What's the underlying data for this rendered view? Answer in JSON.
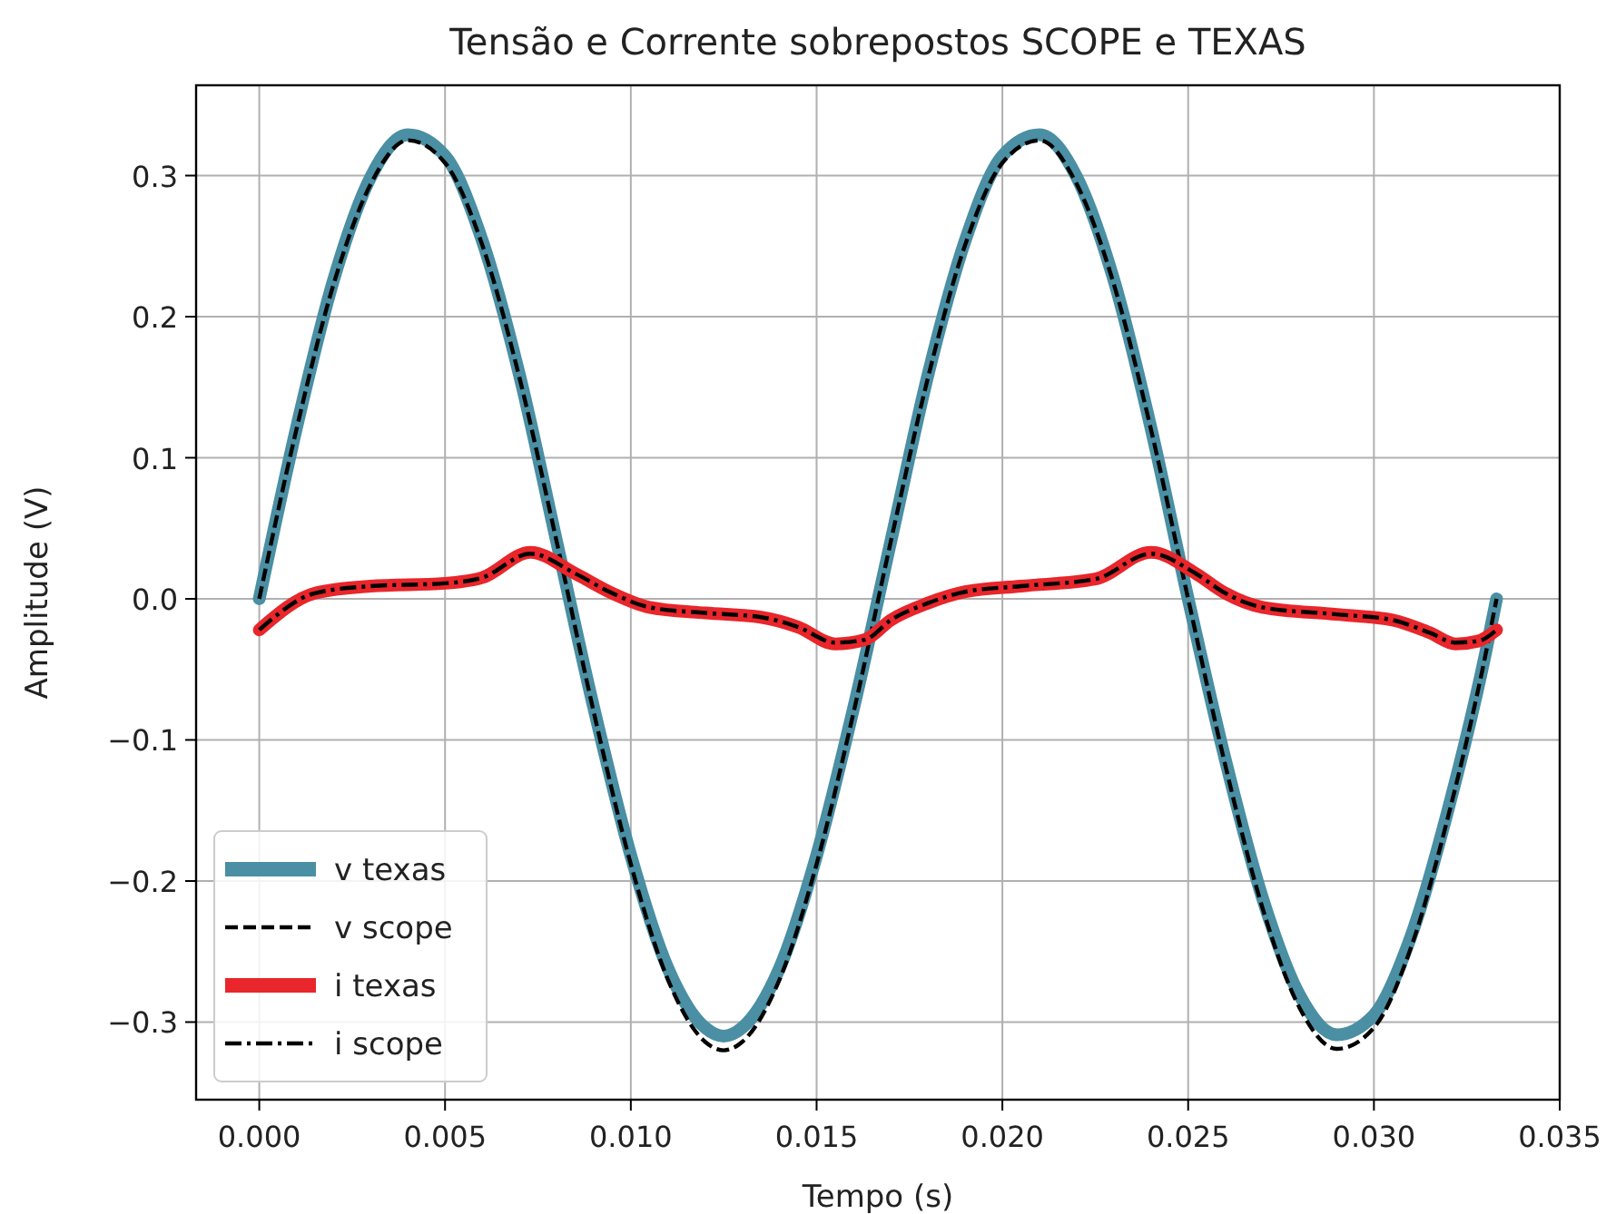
{
  "chart_data": {
    "type": "line",
    "title": "Tensão e Corrente sobrepostos SCOPE e TEXAS",
    "xlabel": "Tempo (s)",
    "ylabel": "Amplitude (V)",
    "xlim": [
      -0.0017,
      0.035
    ],
    "ylim": [
      -0.355,
      0.364
    ],
    "xticks": [
      {
        "value": 0,
        "label": "0.000"
      },
      {
        "value": 0.005,
        "label": "0.005"
      },
      {
        "value": 0.01,
        "label": "0.010"
      },
      {
        "value": 0.015,
        "label": "0.015"
      },
      {
        "value": 0.02,
        "label": "0.020"
      },
      {
        "value": 0.025,
        "label": "0.025"
      },
      {
        "value": 0.03,
        "label": "0.030"
      },
      {
        "value": 0.035,
        "label": "0.035"
      }
    ],
    "yticks": [
      {
        "value": -0.3,
        "label": "−0.3"
      },
      {
        "value": -0.2,
        "label": "−0.2"
      },
      {
        "value": -0.1,
        "label": "−0.1"
      },
      {
        "value": 0,
        "label": "0.0"
      },
      {
        "value": 0.1,
        "label": "0.1"
      },
      {
        "value": 0.2,
        "label": "0.2"
      },
      {
        "value": 0.3,
        "label": "0.3"
      }
    ],
    "grid": true,
    "legend": "bottom left",
    "series": [
      {
        "name": "v texas",
        "color": "#4a8fa3",
        "line_style": "solid",
        "x": [
          0,
          0.001,
          0.002,
          0.003,
          0.004,
          0.005,
          0.006,
          0.007,
          0.008,
          0.009,
          0.01,
          0.011,
          0.012,
          0.0125,
          0.013,
          0.014,
          0.015,
          0.016,
          0.017,
          0.018,
          0.019,
          0.02,
          0.021,
          0.022,
          0.023,
          0.024,
          0.025,
          0.026,
          0.027,
          0.028,
          0.029,
          0.03,
          0.031,
          0.032,
          0.033,
          0.0333
        ],
        "values": [
          0,
          0.121,
          0.226,
          0.299,
          0.329,
          0.314,
          0.254,
          0.159,
          0.041,
          -0.077,
          -0.182,
          -0.262,
          -0.304,
          -0.31,
          -0.304,
          -0.262,
          -0.182,
          -0.077,
          0.041,
          0.159,
          0.254,
          0.314,
          0.329,
          0.299,
          0.226,
          0.121,
          0,
          -0.114,
          -0.212,
          -0.281,
          -0.309,
          -0.295,
          -0.239,
          -0.149,
          -0.039,
          0
        ]
      },
      {
        "name": "v scope",
        "color": "#000000",
        "line_style": "dashed",
        "x": [
          0,
          0.001,
          0.002,
          0.003,
          0.004,
          0.005,
          0.006,
          0.007,
          0.008,
          0.009,
          0.01,
          0.011,
          0.012,
          0.0125,
          0.013,
          0.014,
          0.015,
          0.016,
          0.017,
          0.018,
          0.019,
          0.02,
          0.021,
          0.022,
          0.023,
          0.024,
          0.025,
          0.026,
          0.027,
          0.028,
          0.029,
          0.03,
          0.031,
          0.032,
          0.033,
          0.0333
        ],
        "values": [
          0,
          0.12,
          0.223,
          0.294,
          0.325,
          0.309,
          0.251,
          0.157,
          0.041,
          -0.08,
          -0.188,
          -0.27,
          -0.314,
          -0.32,
          -0.314,
          -0.27,
          -0.188,
          -0.08,
          0.041,
          0.157,
          0.251,
          0.309,
          0.325,
          0.294,
          0.223,
          0.12,
          0,
          -0.118,
          -0.219,
          -0.29,
          -0.319,
          -0.304,
          -0.247,
          -0.154,
          -0.04,
          0
        ]
      },
      {
        "name": "i texas",
        "color": "#e8262b",
        "line_style": "solid",
        "x": [
          0,
          0.0015,
          0.003,
          0.005,
          0.006,
          0.0073,
          0.0085,
          0.0095,
          0.0105,
          0.012,
          0.0135,
          0.0145,
          0.0155,
          0.0163,
          0.017,
          0.018,
          0.019,
          0.0205,
          0.0225,
          0.024,
          0.0252,
          0.026,
          0.027,
          0.029,
          0.0305,
          0.0315,
          0.0322,
          0.0328,
          0.0333
        ],
        "values": [
          -0.022,
          0.004,
          0.009,
          0.011,
          0.015,
          0.033,
          0.018,
          0.004,
          -0.006,
          -0.01,
          -0.013,
          -0.02,
          -0.032,
          -0.029,
          -0.015,
          -0.003,
          0.005,
          0.009,
          0.014,
          0.033,
          0.018,
          0.004,
          -0.006,
          -0.011,
          -0.015,
          -0.024,
          -0.032,
          -0.03,
          -0.022
        ]
      },
      {
        "name": "i scope",
        "color": "#000000",
        "line_style": "dashdot",
        "x": [
          0,
          0.0015,
          0.003,
          0.005,
          0.006,
          0.0073,
          0.0085,
          0.0095,
          0.0105,
          0.012,
          0.0135,
          0.0145,
          0.0155,
          0.0163,
          0.017,
          0.018,
          0.019,
          0.0205,
          0.0225,
          0.024,
          0.0252,
          0.026,
          0.027,
          0.029,
          0.0305,
          0.0315,
          0.0322,
          0.0328,
          0.0333
        ],
        "values": [
          -0.022,
          0.004,
          0.009,
          0.011,
          0.015,
          0.032,
          0.018,
          0.004,
          -0.006,
          -0.01,
          -0.013,
          -0.02,
          -0.031,
          -0.029,
          -0.015,
          -0.003,
          0.005,
          0.009,
          0.014,
          0.032,
          0.018,
          0.004,
          -0.006,
          -0.011,
          -0.015,
          -0.024,
          -0.031,
          -0.03,
          -0.022
        ]
      }
    ]
  }
}
